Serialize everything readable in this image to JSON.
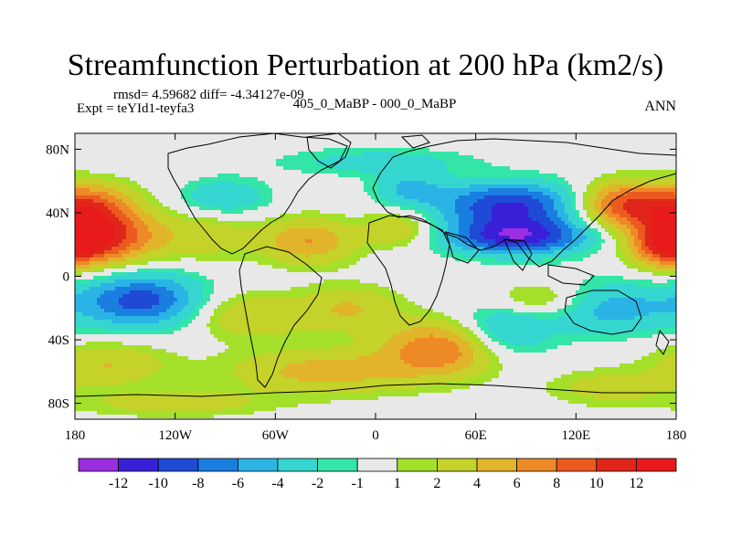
{
  "chart_data": {
    "type": "heatmap",
    "title": "Streamfunction Perturbation at 200 hPa (km2/s)",
    "left_note_1": "rmsd= 4.59682 diff= -4.34127e-09",
    "left_note_2": "Expt = teYId1-teyfa3",
    "center_string": "405_0_MaBP - 000_0_MaBP",
    "right_string": "ANN",
    "x_ticks": [
      {
        "value": -180,
        "label": "180"
      },
      {
        "value": -120,
        "label": "120W"
      },
      {
        "value": -60,
        "label": "60W"
      },
      {
        "value": 0,
        "label": "0"
      },
      {
        "value": 60,
        "label": "60E"
      },
      {
        "value": 120,
        "label": "120E"
      },
      {
        "value": 180,
        "label": "180"
      }
    ],
    "y_ticks": [
      {
        "value": 80,
        "label": "80N"
      },
      {
        "value": 40,
        "label": "40N"
      },
      {
        "value": 0,
        "label": "0"
      },
      {
        "value": -40,
        "label": "40S"
      },
      {
        "value": -80,
        "label": "80S"
      }
    ],
    "xlim": [
      -180,
      180
    ],
    "ylim": [
      -90,
      90
    ],
    "colorbar": {
      "levels": [
        "-12",
        "-10",
        "-8",
        "-6",
        "-4",
        "-2",
        "-1",
        "1",
        "2",
        "4",
        "6",
        "8",
        "10",
        "12"
      ],
      "colors": [
        "#9a2ee0",
        "#3a1fd8",
        "#1f4ad6",
        "#1a7ee0",
        "#2ab4e6",
        "#35d6d0",
        "#33e6a8",
        "#e8e8e8",
        "#a4e02a",
        "#c4d22a",
        "#e2b42a",
        "#ee8a26",
        "#ec5a20",
        "#e0261a",
        "#e81a1a"
      ]
    },
    "features": [
      {
        "lon": -165,
        "lat": 25,
        "amp": 11,
        "slon": 25,
        "slat": 12
      },
      {
        "lon": -170,
        "lat": 45,
        "amp": 7,
        "slon": 18,
        "slat": 10
      },
      {
        "lon": -100,
        "lat": 25,
        "amp": 3,
        "slon": 20,
        "slat": 10
      },
      {
        "lon": -40,
        "lat": 22,
        "amp": 6,
        "slon": 20,
        "slat": 10
      },
      {
        "lon": 15,
        "lat": 30,
        "amp": 4,
        "slon": 15,
        "slat": 8
      },
      {
        "lon": 150,
        "lat": 45,
        "amp": 10,
        "slon": 20,
        "slat": 10
      },
      {
        "lon": 175,
        "lat": 20,
        "amp": 8,
        "slon": 15,
        "slat": 10
      },
      {
        "lon": 80,
        "lat": 45,
        "amp": -10,
        "slon": 30,
        "slat": 10
      },
      {
        "lon": 85,
        "lat": 25,
        "amp": -11,
        "slon": 30,
        "slat": 8
      },
      {
        "lon": 20,
        "lat": 55,
        "amp": -4,
        "slon": 15,
        "slat": 8
      },
      {
        "lon": -90,
        "lat": 50,
        "amp": -4,
        "slon": 18,
        "slat": 8
      },
      {
        "lon": 0,
        "lat": 72,
        "amp": -3,
        "slon": 40,
        "slat": 6
      },
      {
        "lon": -140,
        "lat": -15,
        "amp": -9,
        "slon": 25,
        "slat": 12
      },
      {
        "lon": -75,
        "lat": -25,
        "amp": 4,
        "slon": 25,
        "slat": 10
      },
      {
        "lon": -15,
        "lat": -20,
        "amp": 4,
        "slon": 20,
        "slat": 10
      },
      {
        "lon": 40,
        "lat": -45,
        "amp": 8,
        "slon": 25,
        "slat": 12
      },
      {
        "lon": 75,
        "lat": -35,
        "amp": -5,
        "slon": 20,
        "slat": 12
      },
      {
        "lon": 140,
        "lat": -20,
        "amp": -5,
        "slon": 30,
        "slat": 12
      },
      {
        "lon": 100,
        "lat": -15,
        "amp": 4,
        "slon": 20,
        "slat": 8
      },
      {
        "lon": -30,
        "lat": -60,
        "amp": 5,
        "slon": 40,
        "slat": 10
      },
      {
        "lon": 140,
        "lat": -70,
        "amp": 3,
        "slon": 25,
        "slat": 8
      },
      {
        "lon": -160,
        "lat": -55,
        "amp": 4,
        "slon": 25,
        "slat": 10
      },
      {
        "lon": -120,
        "lat": -80,
        "amp": 3,
        "slon": 40,
        "slat": 6
      }
    ]
  }
}
